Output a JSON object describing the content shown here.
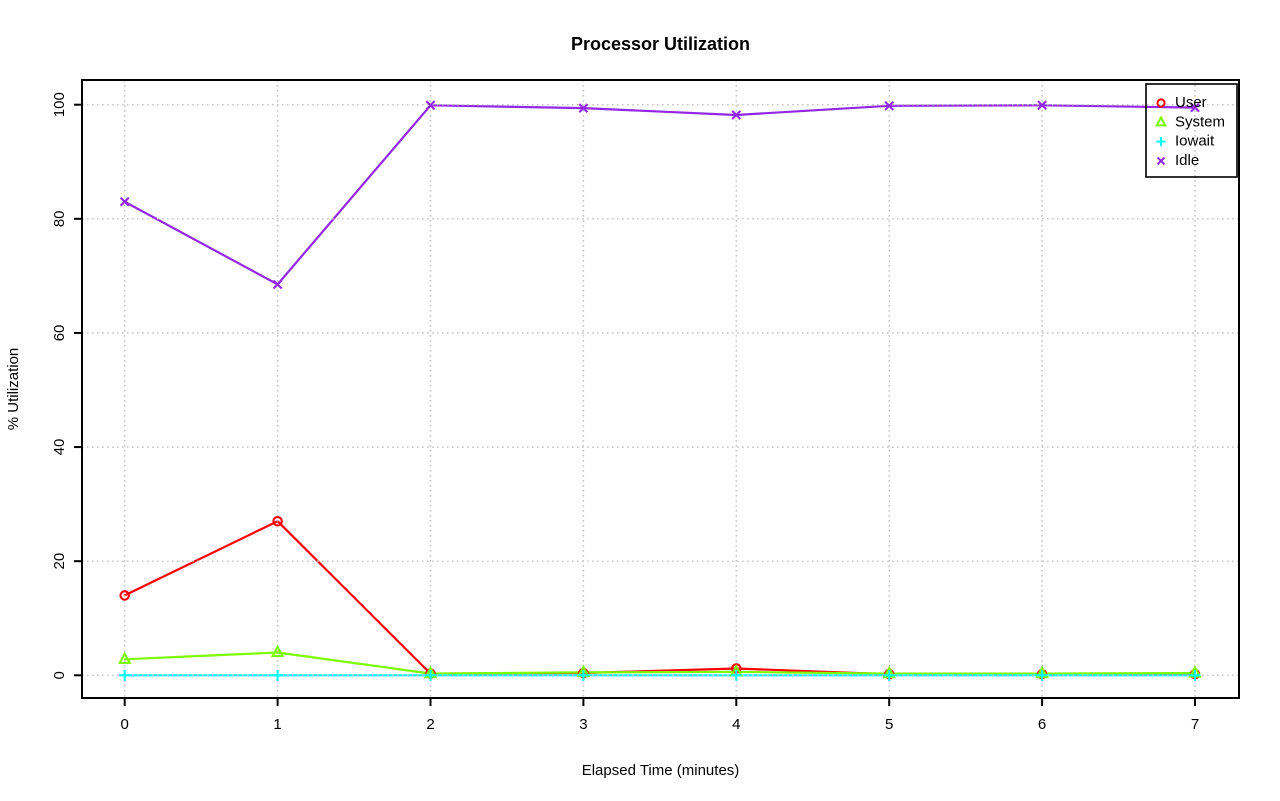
{
  "chart_data": {
    "type": "line",
    "title": "Processor Utilization",
    "xlabel": "Elapsed Time (minutes)",
    "ylabel": "% Utilization",
    "x": [
      0,
      1,
      2,
      3,
      4,
      5,
      6,
      7
    ],
    "xticks": [
      0,
      1,
      2,
      3,
      4,
      5,
      6,
      7
    ],
    "yticks": [
      0,
      20,
      40,
      60,
      80,
      100
    ],
    "xlim": [
      0,
      7
    ],
    "ylim": [
      0,
      100
    ],
    "grid": "dotted-both-axes",
    "grid_color": "#c8c8c8",
    "background_color": "#ffffff",
    "axis_color": "#000000",
    "legend_position": "top-right",
    "legend_border": true,
    "series": [
      {
        "name": "User",
        "color": "#ff0000",
        "marker": "circle",
        "line": "solid",
        "values": [
          14,
          27,
          0.3,
          0.4,
          1.2,
          0.2,
          0.2,
          0.2
        ]
      },
      {
        "name": "System",
        "color": "#7cfc00",
        "marker": "triangle",
        "line": "solid",
        "values": [
          2.8,
          4,
          0.3,
          0.5,
          0.6,
          0.3,
          0.3,
          0.4
        ]
      },
      {
        "name": "Iowait",
        "color": "#00ffff",
        "marker": "plus",
        "line": "solid",
        "values": [
          0,
          0,
          0,
          0,
          0,
          0,
          0,
          0
        ]
      },
      {
        "name": "Idle",
        "color": "#9228e6",
        "marker": "x",
        "line": "solid",
        "values": [
          83,
          68.5,
          99.9,
          99.4,
          98.2,
          99.8,
          99.9,
          99.5
        ]
      }
    ]
  }
}
